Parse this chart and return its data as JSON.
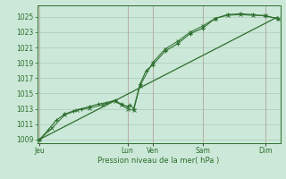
{
  "background_color": "#cce8d8",
  "grid_color": "#aaccbb",
  "line_color": "#2d6e2d",
  "marker_color": "#2d6e2d",
  "xlabel": "Pression niveau de la mer( hPa )",
  "ylim": [
    1008.5,
    1026.5
  ],
  "yticks": [
    1009,
    1011,
    1013,
    1015,
    1017,
    1019,
    1021,
    1023,
    1025
  ],
  "day_labels": [
    "Jeu",
    "Lun",
    "Ven",
    "Sam",
    "Dim"
  ],
  "day_positions": [
    0.0,
    3.5,
    4.5,
    6.5,
    9.0
  ],
  "xlim": [
    -0.1,
    9.6
  ],
  "series1_x": [
    0.0,
    0.33,
    0.66,
    1.0,
    1.33,
    1.66,
    2.0,
    2.33,
    2.66,
    3.0,
    3.25,
    3.5,
    3.6,
    3.75,
    4.0,
    4.25,
    4.5,
    5.0,
    5.5,
    6.0,
    6.5,
    7.0,
    7.5,
    8.0,
    8.5,
    9.0,
    9.5
  ],
  "series1_y": [
    1009.0,
    1010.2,
    1011.5,
    1012.3,
    1012.7,
    1013.0,
    1013.3,
    1013.6,
    1013.8,
    1014.1,
    1013.6,
    1013.3,
    1013.5,
    1013.0,
    1016.2,
    1018.0,
    1018.7,
    1020.5,
    1021.5,
    1022.8,
    1023.5,
    1024.8,
    1025.3,
    1025.4,
    1025.3,
    1025.1,
    1024.8
  ],
  "series2_x": [
    0.0,
    0.5,
    1.0,
    1.5,
    2.0,
    2.5,
    3.0,
    3.25,
    3.5,
    3.75,
    4.0,
    4.5,
    5.0,
    5.5,
    6.0,
    6.5,
    7.0,
    7.5,
    8.0,
    8.5,
    9.0,
    9.5
  ],
  "series2_y": [
    1009.0,
    1010.5,
    1012.2,
    1012.8,
    1013.1,
    1013.5,
    1014.0,
    1013.5,
    1013.0,
    1012.8,
    1016.0,
    1019.0,
    1020.8,
    1021.8,
    1023.0,
    1023.8,
    1024.8,
    1025.2,
    1025.3,
    1025.2,
    1025.2,
    1024.7
  ],
  "trend_x": [
    0.0,
    9.5
  ],
  "trend_y": [
    1009.0,
    1025.0
  ],
  "vline_color": "#bb8888",
  "vline_alpha": 0.6
}
